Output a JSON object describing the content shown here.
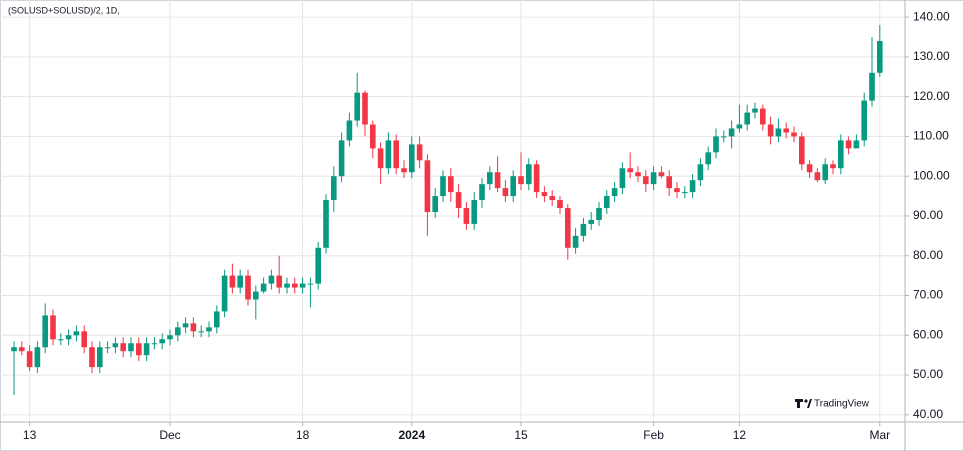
{
  "chart_data": {
    "type": "candlestick",
    "title": "(SOLUSD+SOLUSD)/2, 1D,",
    "watermark": "TradingView",
    "x": [
      "2023-11-11",
      "2023-11-12",
      "2023-11-13",
      "2023-11-14",
      "2023-11-15",
      "2023-11-16",
      "2023-11-17",
      "2023-11-18",
      "2023-11-19",
      "2023-11-20",
      "2023-11-21",
      "2023-11-22",
      "2023-11-23",
      "2023-11-24",
      "2023-11-25",
      "2023-11-26",
      "2023-11-27",
      "2023-11-28",
      "2023-11-29",
      "2023-11-30",
      "2023-12-01",
      "2023-12-02",
      "2023-12-03",
      "2023-12-04",
      "2023-12-05",
      "2023-12-06",
      "2023-12-07",
      "2023-12-08",
      "2023-12-09",
      "2023-12-10",
      "2023-12-11",
      "2023-12-12",
      "2023-12-13",
      "2023-12-14",
      "2023-12-15",
      "2023-12-16",
      "2023-12-17",
      "2023-12-18",
      "2023-12-19",
      "2023-12-20",
      "2023-12-21",
      "2023-12-22",
      "2023-12-23",
      "2023-12-24",
      "2023-12-25",
      "2023-12-26",
      "2023-12-27",
      "2023-12-28",
      "2023-12-29",
      "2023-12-30",
      "2023-12-31",
      "2024-01-01",
      "2024-01-02",
      "2024-01-03",
      "2024-01-04",
      "2024-01-05",
      "2024-01-06",
      "2024-01-07",
      "2024-01-08",
      "2024-01-09",
      "2024-01-10",
      "2024-01-11",
      "2024-01-12",
      "2024-01-13",
      "2024-01-14",
      "2024-01-15",
      "2024-01-16",
      "2024-01-17",
      "2024-01-18",
      "2024-01-19",
      "2024-01-20",
      "2024-01-21",
      "2024-01-22",
      "2024-01-23",
      "2024-01-24",
      "2024-01-25",
      "2024-01-26",
      "2024-01-27",
      "2024-01-28",
      "2024-01-29",
      "2024-01-30",
      "2024-01-31",
      "2024-02-01",
      "2024-02-02",
      "2024-02-03",
      "2024-02-04",
      "2024-02-05",
      "2024-02-06",
      "2024-02-07",
      "2024-02-08",
      "2024-02-09",
      "2024-02-10",
      "2024-02-11",
      "2024-02-12",
      "2024-02-13",
      "2024-02-14",
      "2024-02-15",
      "2024-02-16",
      "2024-02-17",
      "2024-02-18",
      "2024-02-19",
      "2024-02-20",
      "2024-02-21",
      "2024-02-22",
      "2024-02-23",
      "2024-02-24",
      "2024-02-25",
      "2024-02-26",
      "2024-02-27",
      "2024-02-28",
      "2024-02-29",
      "2024-03-01"
    ],
    "open": [
      56,
      57,
      56,
      52,
      57,
      65,
      59,
      59,
      60,
      61,
      57,
      52,
      57,
      57,
      58,
      56,
      58,
      55,
      58,
      58,
      59,
      60,
      62,
      63,
      61,
      61,
      62,
      66,
      75,
      72,
      75,
      69,
      71,
      73,
      75,
      72,
      73,
      72,
      73,
      73,
      82,
      94,
      100,
      109,
      114,
      121,
      113,
      107,
      102,
      109,
      102,
      101,
      108,
      104,
      91,
      95,
      100,
      96,
      92,
      88,
      94,
      98,
      101,
      97,
      95,
      100,
      98,
      103,
      96,
      95,
      94,
      92,
      82,
      85,
      88,
      89,
      92,
      95,
      97,
      102,
      101,
      100,
      98,
      101,
      100,
      97,
      96,
      96,
      99,
      103,
      106,
      110,
      110,
      112,
      113,
      116,
      117,
      113,
      110,
      112,
      111,
      110,
      103,
      101,
      99,
      103,
      102,
      109,
      107,
      109,
      119,
      126
    ],
    "high": [
      58.5,
      58.5,
      57.5,
      58.5,
      68,
      66.5,
      60.5,
      61.5,
      62.5,
      62.5,
      58.5,
      58.5,
      58.5,
      59.5,
      59.5,
      59.5,
      59.5,
      59.5,
      59.5,
      60.5,
      61.5,
      63.5,
      64.5,
      64.5,
      62.5,
      63.5,
      67.5,
      76.5,
      78,
      76.5,
      76.5,
      72.5,
      74.5,
      76.5,
      80,
      74.5,
      74.5,
      74.5,
      74.5,
      83.5,
      95.5,
      102.5,
      111,
      116,
      126,
      121.5,
      114,
      108.5,
      111,
      110.5,
      104,
      110,
      110,
      105.5,
      97,
      101.5,
      102,
      98,
      93.5,
      96,
      99.5,
      102.5,
      105,
      99,
      101.5,
      106,
      104.5,
      104,
      97.5,
      96.5,
      95,
      93,
      87,
      89.5,
      91,
      93.5,
      96.5,
      98.5,
      103.5,
      106,
      102.5,
      101.5,
      102.5,
      102.5,
      101.5,
      98.5,
      97.5,
      100.5,
      104.5,
      107.5,
      112,
      111.5,
      114,
      118,
      118,
      118.5,
      118,
      115,
      114.5,
      113.5,
      112.5,
      111,
      104,
      102,
      104.5,
      104,
      110.5,
      110,
      110.5,
      121,
      135,
      138
    ],
    "low": [
      45,
      55,
      51,
      50.5,
      55.5,
      57.5,
      57.5,
      57.5,
      58.5,
      55.5,
      50.5,
      50.5,
      55.5,
      55.5,
      54.5,
      54.5,
      53.5,
      53.5,
      56.5,
      56.5,
      57.5,
      58.5,
      60.5,
      59.5,
      59.5,
      59.5,
      60.5,
      64.5,
      70.5,
      70.5,
      67.5,
      64,
      70.5,
      71.5,
      70.5,
      70.5,
      70.5,
      70.5,
      67,
      71.5,
      80.5,
      91,
      98.5,
      107.5,
      112.5,
      110,
      104.5,
      98,
      100.5,
      100.5,
      99.5,
      99.5,
      102,
      85,
      89.5,
      93.5,
      93.5,
      89.5,
      86.5,
      86.5,
      92,
      96.5,
      96,
      93.5,
      93.5,
      96.5,
      96.5,
      94.5,
      93.5,
      92.5,
      90.5,
      79,
      80.5,
      83.5,
      86.5,
      87.5,
      90.5,
      93.5,
      95.5,
      99.5,
      98.5,
      96,
      96.5,
      99.5,
      95,
      94.5,
      94.5,
      94.5,
      97.5,
      101.5,
      104.5,
      108.5,
      107,
      111,
      111.5,
      114.5,
      111.5,
      108,
      108.5,
      109.5,
      108.5,
      101.5,
      99.5,
      98.5,
      98,
      100.5,
      100.5,
      105.5,
      107.5,
      107.5,
      117.5,
      125
    ],
    "close": [
      57,
      56,
      52,
      57,
      65,
      59,
      59,
      60,
      61,
      57,
      52,
      57,
      57,
      58,
      56,
      58,
      55,
      58,
      58,
      59,
      60,
      62,
      63,
      61,
      61,
      62,
      66,
      75,
      72,
      75,
      69,
      71,
      73,
      75,
      72,
      73,
      72,
      73,
      73,
      82,
      94,
      100,
      109,
      114,
      121,
      113,
      107,
      102,
      109,
      102,
      101,
      108,
      104,
      91,
      95,
      100,
      96,
      92,
      88,
      94,
      98,
      101,
      97,
      95,
      100,
      98,
      103,
      96,
      95,
      94,
      92,
      82,
      85,
      88,
      89,
      92,
      95,
      97,
      102,
      101,
      100,
      98,
      101,
      100,
      97,
      96,
      96,
      99,
      103,
      106,
      110,
      110,
      112,
      113,
      116,
      117,
      113,
      110,
      112,
      111,
      110,
      103,
      101,
      99,
      103,
      102,
      109,
      107,
      109,
      119,
      126,
      134
    ],
    "up_color": "#089981",
    "down_color": "#f23645",
    "ylim": [
      38.2,
      144.3
    ],
    "yticks": [
      {
        "value": 40,
        "label": "40.00"
      },
      {
        "value": 50,
        "label": "50.00"
      },
      {
        "value": 60,
        "label": "60.00"
      },
      {
        "value": 70,
        "label": "70.00"
      },
      {
        "value": 80,
        "label": "80.00"
      },
      {
        "value": 90,
        "label": "90.00"
      },
      {
        "value": 100,
        "label": "100.00"
      },
      {
        "value": 110,
        "label": "110.00"
      },
      {
        "value": 120,
        "label": "120.00"
      },
      {
        "value": 130,
        "label": "130.00"
      },
      {
        "value": 140,
        "label": "140.00"
      }
    ],
    "xticks": [
      {
        "value": "2023-11-13",
        "label": "13"
      },
      {
        "value": "2023-12-01",
        "label": "Dec"
      },
      {
        "value": "2023-12-18",
        "label": "18"
      },
      {
        "value": "2024-01-01",
        "label": "2024"
      },
      {
        "value": "2024-01-15",
        "label": "15"
      },
      {
        "value": "2024-02-01",
        "label": "Feb"
      },
      {
        "value": "2024-02-12",
        "label": "12"
      },
      {
        "value": "2024-03-01",
        "label": "Mar"
      }
    ],
    "grid": true,
    "y_axis_side": "right"
  }
}
